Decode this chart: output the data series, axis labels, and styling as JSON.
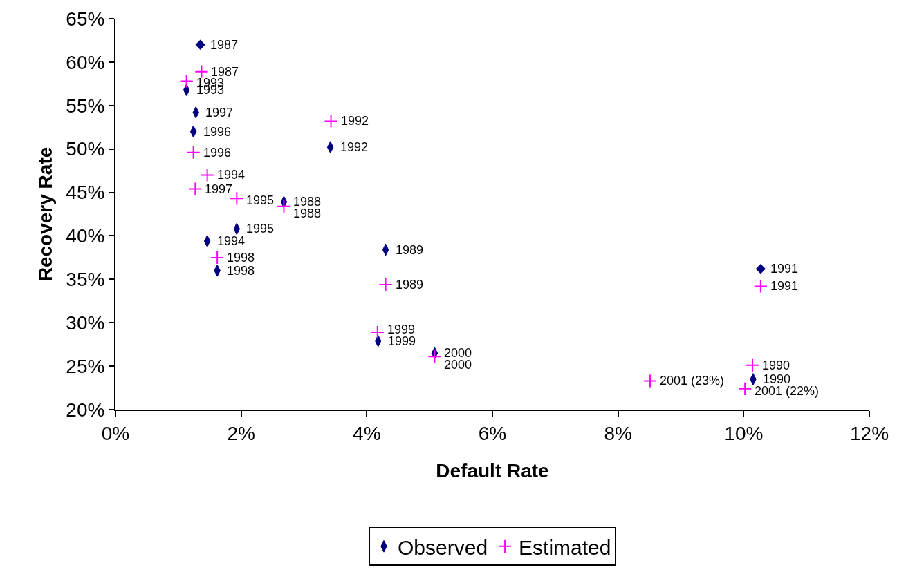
{
  "chart_data": {
    "type": "scatter",
    "xlabel": "Default Rate",
    "ylabel": "Recovery Rate",
    "xlim": [
      0,
      12
    ],
    "xticks": [
      {
        "value": 0,
        "label": "0%"
      },
      {
        "value": 2,
        "label": "2%"
      },
      {
        "value": 4,
        "label": "4%"
      },
      {
        "value": 6,
        "label": "6%"
      },
      {
        "value": 8,
        "label": "8%"
      },
      {
        "value": 10,
        "label": "10%"
      },
      {
        "value": 12,
        "label": "12%"
      }
    ],
    "ylim": [
      20,
      65
    ],
    "yticks": [
      {
        "value": 20,
        "label": "20%"
      },
      {
        "value": 25,
        "label": "25%"
      },
      {
        "value": 30,
        "label": "30%"
      },
      {
        "value": 35,
        "label": "35%"
      },
      {
        "value": 40,
        "label": "40%"
      },
      {
        "value": 45,
        "label": "45%"
      },
      {
        "value": 50,
        "label": "50%"
      },
      {
        "value": 55,
        "label": "55%"
      },
      {
        "value": 60,
        "label": "60%"
      },
      {
        "value": 65,
        "label": "65%"
      }
    ],
    "grid": false,
    "legend": "bottom",
    "series": [
      {
        "name": "Observed",
        "color": "#000080",
        "x": [
          1.13,
          1.28,
          1.24,
          3.42,
          2.68,
          1.93,
          1.46,
          4.3,
          1.62,
          4.18,
          5.08,
          10.15
        ],
        "values": [
          56.8,
          54.2,
          52.0,
          50.2,
          43.9,
          40.8,
          39.4,
          38.4,
          36.0,
          27.9,
          26.5,
          23.5
        ]
      },
      {
        "name": "Estimated",
        "color": "#ff00ff",
        "marker": "cross",
        "x": [
          1.37,
          1.13,
          1.24,
          1.46,
          1.27,
          1.93,
          2.68,
          3.43,
          1.62,
          4.3,
          10.27,
          4.17,
          5.08,
          10.14,
          8.51,
          10.02
        ],
        "values": [
          58.9,
          57.8,
          49.6,
          47.0,
          45.4,
          44.3,
          43.4,
          53.2,
          37.5,
          34.4,
          34.2,
          28.9,
          26.1,
          25.1,
          23.3,
          22.4
        ]
      },
      {
        "color": "#000080",
        "marker": "diamond",
        "x": [
          1.35,
          10.27
        ],
        "values": [
          62.0,
          36.2
        ]
      }
    ],
    "annotations": [
      {
        "text": "1987",
        "x": 1.35,
        "y": 62.0
      },
      {
        "text": "1993",
        "x": 1.13,
        "y": 56.8
      },
      {
        "text": "1997",
        "x": 1.28,
        "y": 54.2
      },
      {
        "text": "1996",
        "x": 1.24,
        "y": 52.0
      },
      {
        "text": "1992",
        "x": 3.42,
        "y": 50.2
      },
      {
        "text": "1988",
        "x": 2.68,
        "y": 43.9
      },
      {
        "text": "1995",
        "x": 1.93,
        "y": 40.8
      },
      {
        "text": "1994",
        "x": 1.46,
        "y": 39.4
      },
      {
        "text": "1989",
        "x": 4.3,
        "y": 38.4
      },
      {
        "text": "1998",
        "x": 1.62,
        "y": 36.0
      },
      {
        "text": "1991",
        "x": 10.27,
        "y": 36.2
      },
      {
        "text": "1999",
        "x": 4.18,
        "y": 27.9
      },
      {
        "text": "2000",
        "x": 5.08,
        "y": 26.5
      },
      {
        "text": "1990",
        "x": 10.15,
        "y": 23.5
      },
      {
        "text": "1987",
        "x": 1.37,
        "y": 58.9
      },
      {
        "text": "1993",
        "x": 1.13,
        "y": 57.8
      },
      {
        "text": "1996",
        "x": 1.24,
        "y": 49.6
      },
      {
        "text": "1994",
        "x": 1.46,
        "y": 47.0
      },
      {
        "text": "1997",
        "x": 1.27,
        "y": 45.4
      },
      {
        "text": "1995",
        "x": 1.93,
        "y": 44.3
      },
      {
        "text": "1988",
        "x": 2.68,
        "y": 43.4
      },
      {
        "text": "1992",
        "x": 3.43,
        "y": 53.2
      },
      {
        "text": "1998",
        "x": 1.62,
        "y": 37.5
      },
      {
        "text": "1989",
        "x": 4.3,
        "y": 34.4
      },
      {
        "text": "1991",
        "x": 10.27,
        "y": 34.2
      },
      {
        "text": "1999",
        "x": 4.17,
        "y": 28.9
      },
      {
        "text": "2000",
        "x": 5.08,
        "y": 26.1
      },
      {
        "text": "1990",
        "x": 10.14,
        "y": 25.1
      },
      {
        "text": "2001 (23%)",
        "x": 8.51,
        "y": 23.3
      },
      {
        "text": "2001 (22%)",
        "x": 10.02,
        "y": 22.4
      }
    ]
  }
}
